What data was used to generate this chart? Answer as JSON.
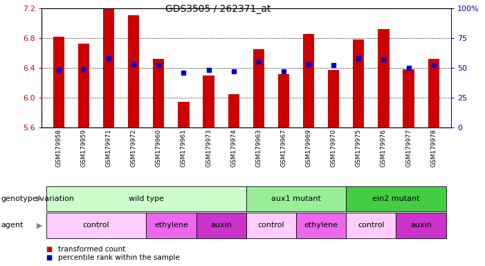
{
  "title": "GDS3505 / 262371_at",
  "samples": [
    "GSM179958",
    "GSM179959",
    "GSM179971",
    "GSM179972",
    "GSM179960",
    "GSM179961",
    "GSM179973",
    "GSM179974",
    "GSM179963",
    "GSM179967",
    "GSM179969",
    "GSM179970",
    "GSM179975",
    "GSM179976",
    "GSM179977",
    "GSM179978"
  ],
  "transformed_count": [
    6.82,
    6.72,
    7.2,
    7.1,
    6.52,
    5.95,
    6.3,
    6.05,
    6.65,
    6.32,
    6.85,
    6.37,
    6.78,
    6.92,
    6.38,
    6.52
  ],
  "percentile_rank": [
    48,
    49,
    58,
    53,
    52,
    46,
    48,
    47,
    55,
    47,
    53,
    52,
    58,
    57,
    50,
    52
  ],
  "bar_base": 5.6,
  "ylim_left": [
    5.6,
    7.2
  ],
  "ylim_right": [
    0,
    100
  ],
  "yticks_left": [
    5.6,
    6.0,
    6.4,
    6.8,
    7.2
  ],
  "yticks_right": [
    0,
    25,
    50,
    75,
    100
  ],
  "ytick_labels_right": [
    "0",
    "25",
    "50",
    "75",
    "100%"
  ],
  "bar_color": "#cc0000",
  "dot_color": "#0000cc",
  "left_axis_color": "#cc0000",
  "right_axis_color": "#0000cc",
  "genotype_groups": [
    {
      "label": "wild type",
      "start": 0,
      "end": 8,
      "color": "#ccffcc"
    },
    {
      "label": "aux1 mutant",
      "start": 8,
      "end": 12,
      "color": "#99ee99"
    },
    {
      "label": "ein2 mutant",
      "start": 12,
      "end": 16,
      "color": "#44cc44"
    }
  ],
  "agent_groups": [
    {
      "label": "control",
      "start": 0,
      "end": 4,
      "color": "#ffccff"
    },
    {
      "label": "ethylene",
      "start": 4,
      "end": 6,
      "color": "#ee66ee"
    },
    {
      "label": "auxin",
      "start": 6,
      "end": 8,
      "color": "#cc33cc"
    },
    {
      "label": "control",
      "start": 8,
      "end": 10,
      "color": "#ffccff"
    },
    {
      "label": "ethylene",
      "start": 10,
      "end": 12,
      "color": "#ee66ee"
    },
    {
      "label": "control",
      "start": 12,
      "end": 14,
      "color": "#ffccff"
    },
    {
      "label": "auxin",
      "start": 14,
      "end": 16,
      "color": "#cc33cc"
    }
  ]
}
